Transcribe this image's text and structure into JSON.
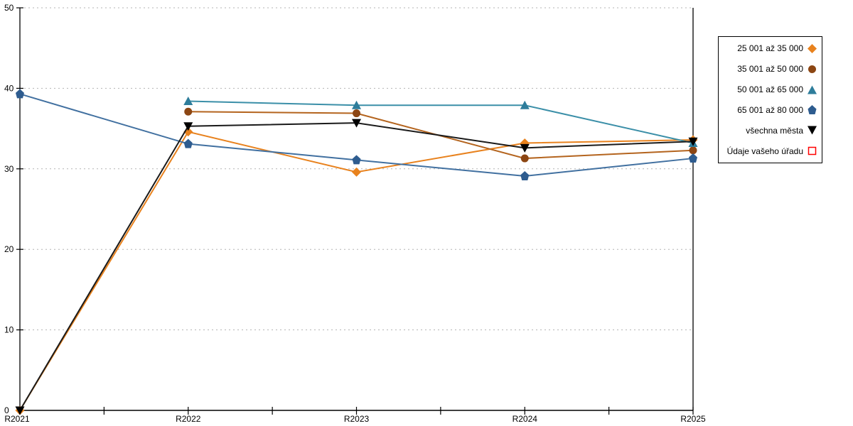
{
  "chart_data": {
    "type": "line",
    "title": "",
    "xlabel": "",
    "ylabel": "",
    "categories": [
      "R2021",
      "R2022",
      "R2023",
      "R2024",
      "R2025"
    ],
    "series": [
      {
        "name": "25 001 až 35 000",
        "marker": "diamond",
        "line_color": "#E8821E",
        "marker_color": "#E8821E",
        "values": [
          0,
          34.6,
          29.6,
          33.2,
          33.6
        ]
      },
      {
        "name": "35 001 až 50 000",
        "marker": "circle",
        "line_color": "#B4641E",
        "marker_color": "#8C4613",
        "values": [
          null,
          37.1,
          36.9,
          31.3,
          32.3
        ]
      },
      {
        "name": "50 001 až 65 000",
        "marker": "triangle-up",
        "line_color": "#3B8FA8",
        "marker_color": "#2E7D9B",
        "values": [
          null,
          38.4,
          37.9,
          37.9,
          33.2
        ]
      },
      {
        "name": "65 001 až 80 000",
        "marker": "pentagon",
        "line_color": "#4170A0",
        "marker_color": "#2E5C8F",
        "values": [
          39.3,
          33.1,
          31.1,
          29.1,
          31.3
        ]
      },
      {
        "name": "všechna města",
        "marker": "triangle-down",
        "line_color": "#1A1A1A",
        "marker_color": "#000000",
        "values": [
          0,
          35.3,
          35.7,
          32.6,
          33.4
        ]
      },
      {
        "name": "Údaje vašeho úřadu",
        "marker": "square-open",
        "line_color": "#FF0000",
        "marker_color": "#FF0000",
        "values": [
          null,
          null,
          null,
          null,
          null
        ]
      }
    ],
    "ylim": [
      0,
      50
    ],
    "yticks": [
      0,
      10,
      20,
      30,
      40,
      50
    ],
    "grid": "horizontal-dashed",
    "gridline_color": "#b3b3b3",
    "axis_color": "#000000",
    "legend_position": "right"
  }
}
